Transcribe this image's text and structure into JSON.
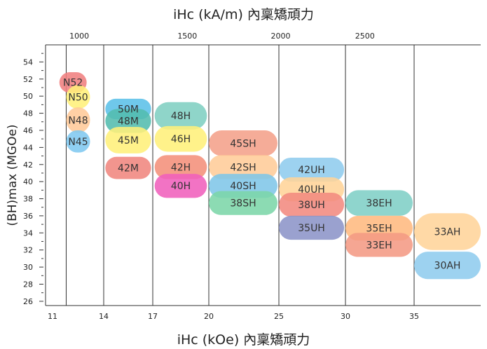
{
  "chart_data": {
    "type": "bubble-range",
    "title_top": "iHc (kA/m) 內稟矯頑力",
    "xlabel": "iHc (kOe)   內稟矯頑力",
    "ylabel": "(BH)max   (MGOe)",
    "x_ticks": [
      "11",
      "14",
      "17",
      "20",
      "25",
      "30",
      "35"
    ],
    "x_top_ticks": [
      "1000",
      "1500",
      "2000",
      "2500"
    ],
    "y_ticks": [
      26,
      28,
      30,
      32,
      34,
      36,
      38,
      40,
      42,
      44,
      46,
      48,
      50,
      52,
      54
    ],
    "ylim": [
      25.5,
      56
    ],
    "grades": [
      {
        "label": "N52",
        "color": "#F08080",
        "x": [
          11.4,
          13.0
        ],
        "y": [
          50.4,
          52.8
        ]
      },
      {
        "label": "N50",
        "color": "#FFF07A",
        "x": [
          11.8,
          13.2
        ],
        "y": [
          48.5,
          51.3
        ]
      },
      {
        "label": "N48",
        "color": "#FFC999",
        "x": [
          11.8,
          13.2
        ],
        "y": [
          45.7,
          48.7
        ]
      },
      {
        "label": "N45",
        "color": "#7FC8F0",
        "x": [
          11.8,
          13.2
        ],
        "y": [
          43.4,
          46.0
        ]
      },
      {
        "label": "50M",
        "color": "#5BC0E8",
        "x": [
          14.1,
          16.9
        ],
        "y": [
          47.3,
          49.7
        ]
      },
      {
        "label": "48M",
        "color": "#53BCAE",
        "x": [
          14.1,
          16.9
        ],
        "y": [
          45.7,
          48.5
        ]
      },
      {
        "label": "45M",
        "color": "#FFF07A",
        "x": [
          14.1,
          16.9
        ],
        "y": [
          43.3,
          46.4
        ]
      },
      {
        "label": "42M",
        "color": "#F0867E",
        "x": [
          14.1,
          16.9
        ],
        "y": [
          40.3,
          42.9
        ]
      },
      {
        "label": "48H",
        "color": "#7FCFC2",
        "x": [
          17.1,
          19.9
        ],
        "y": [
          46.1,
          49.3
        ]
      },
      {
        "label": "46H",
        "color": "#FFF07A",
        "x": [
          17.1,
          19.9
        ],
        "y": [
          43.5,
          46.5
        ]
      },
      {
        "label": "42H",
        "color": "#F4907A",
        "x": [
          17.1,
          19.9
        ],
        "y": [
          40.3,
          43.1
        ]
      },
      {
        "label": "40H",
        "color": "#F060BC",
        "x": [
          17.1,
          19.9
        ],
        "y": [
          38.1,
          40.9
        ]
      },
      {
        "label": "45SH",
        "color": "#F4A08A",
        "x": [
          20.0,
          24.9
        ],
        "y": [
          43.0,
          46.0
        ]
      },
      {
        "label": "42SH",
        "color": "#FFCC99",
        "x": [
          20.0,
          24.9
        ],
        "y": [
          40.3,
          43.1
        ]
      },
      {
        "label": "40SH",
        "color": "#7FC6E8",
        "x": [
          20.0,
          24.9
        ],
        "y": [
          38.1,
          40.9
        ]
      },
      {
        "label": "38SH",
        "color": "#7CD6A8",
        "x": [
          20.0,
          24.9
        ],
        "y": [
          36.1,
          38.9
        ]
      },
      {
        "label": "42UH",
        "color": "#8FCCEE",
        "x": [
          25.0,
          29.9
        ],
        "y": [
          40.0,
          42.8
        ]
      },
      {
        "label": "40UH",
        "color": "#FFD499",
        "x": [
          25.0,
          29.9
        ],
        "y": [
          37.7,
          40.5
        ]
      },
      {
        "label": "38UH",
        "color": "#F28A80",
        "x": [
          25.0,
          29.9
        ],
        "y": [
          35.9,
          38.7
        ]
      },
      {
        "label": "35UH",
        "color": "#8C94C8",
        "x": [
          25.0,
          29.9
        ],
        "y": [
          33.2,
          36.0
        ]
      },
      {
        "label": "38EH",
        "color": "#7FCFC6",
        "x": [
          30.0,
          34.9
        ],
        "y": [
          36.0,
          39.0
        ]
      },
      {
        "label": "35EH",
        "color": "#FFBA80",
        "x": [
          30.0,
          34.9
        ],
        "y": [
          33.1,
          36.0
        ]
      },
      {
        "label": "33EH",
        "color": "#F49A84",
        "x": [
          30.0,
          34.9
        ],
        "y": [
          31.2,
          34.0
        ]
      },
      {
        "label": "33AH",
        "color": "#FFD49A",
        "x": [
          35.0,
          39.1
        ],
        "y": [
          32.0,
          36.3
        ]
      },
      {
        "label": "30AH",
        "color": "#8FCCEE",
        "x": [
          35.0,
          39.1
        ],
        "y": [
          28.6,
          31.8
        ]
      }
    ],
    "grid": "vertical"
  }
}
